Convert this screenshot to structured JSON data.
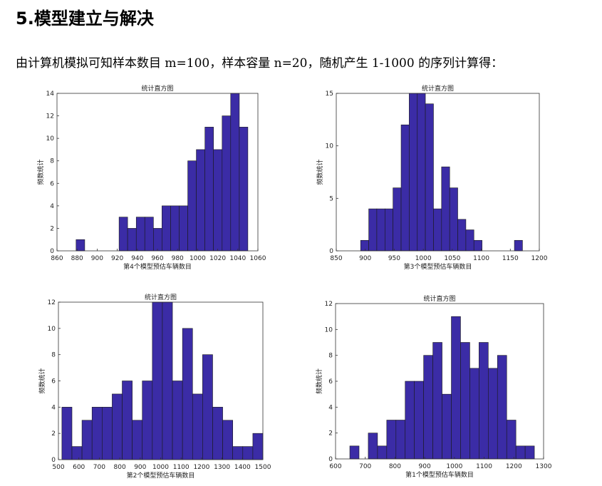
{
  "title": "5.模型建立与解决",
  "text": "由计算机模拟可知样本数目 m=100，样本容量 n=20，随机产生 1-1000 的序列计算得：",
  "chart_data": [
    {
      "type": "histogram",
      "title": "统计直方图",
      "xlabel": "第4个模型预估车辆数目",
      "ylabel": "频数统计",
      "color": "#3b2ca6",
      "bins": [
        879,
        887.6,
        896.1,
        904.7,
        913.2,
        921.8,
        930.3,
        938.9,
        947.4,
        956,
        964.5,
        973.1,
        981.6,
        990.2,
        998.7,
        1007.3,
        1015.8,
        1024.4,
        1032.9,
        1041.5,
        1050
      ],
      "values": [
        1,
        0,
        0,
        0,
        0,
        3,
        2,
        3,
        3,
        2,
        4,
        4,
        4,
        8,
        9,
        11,
        9,
        12,
        14,
        11
      ],
      "xlim": [
        860,
        1060
      ],
      "xticks": [
        860,
        880,
        900,
        920,
        940,
        960,
        980,
        1000,
        1020,
        1040,
        1060
      ],
      "ylim": [
        0,
        14
      ],
      "yticks": [
        0,
        2,
        4,
        6,
        8,
        10,
        12,
        14
      ]
    },
    {
      "type": "histogram",
      "title": "统计直方图",
      "xlabel": "第3个模型预估车辆数目",
      "ylabel": "频数统计",
      "color": "#3b2ca6",
      "bins": [
        892,
        906,
        919.9,
        933.9,
        947.8,
        961.8,
        975.7,
        989.7,
        1003.6,
        1017.6,
        1031.5,
        1045.5,
        1059.4,
        1073.4,
        1087.3,
        1101.3,
        1115.2,
        1129.2,
        1143.1,
        1157.1,
        1171
      ],
      "values": [
        1,
        4,
        4,
        4,
        6,
        12,
        15,
        15,
        14,
        4,
        8,
        6,
        3,
        2,
        1,
        0,
        0,
        0,
        0,
        1
      ],
      "xlim": [
        850,
        1200
      ],
      "xticks": [
        850,
        900,
        950,
        1000,
        1050,
        1100,
        1150,
        1200
      ],
      "ylim": [
        0,
        15
      ],
      "yticks": [
        0,
        5,
        10,
        15
      ]
    },
    {
      "type": "histogram",
      "title": "统计直方图",
      "xlabel": "第2个模型预估车辆数目",
      "ylabel": "频数统计",
      "color": "#3b2ca6",
      "bins": [
        517,
        566.2,
        615.3,
        664.5,
        713.6,
        762.8,
        811.9,
        861.1,
        910.2,
        959.4,
        1008.5,
        1057.7,
        1106.8,
        1156,
        1205.1,
        1254.3,
        1303.4,
        1352.6,
        1401.7,
        1450.9,
        1500
      ],
      "values": [
        4,
        1,
        3,
        4,
        4,
        5,
        6,
        3,
        6,
        12,
        12,
        6,
        10,
        5,
        8,
        4,
        3,
        1,
        1,
        2
      ],
      "xlim": [
        500,
        1500
      ],
      "xticks": [
        500,
        600,
        700,
        800,
        900,
        1000,
        1100,
        1200,
        1300,
        1400,
        1500
      ],
      "ylim": [
        0,
        12
      ],
      "yticks": [
        0,
        2,
        4,
        6,
        8,
        10,
        12
      ]
    },
    {
      "type": "histogram",
      "title": "统计直方图",
      "xlabel": "第1个模型预估车辆数目",
      "ylabel": "频数统计",
      "color": "#3b2ca6",
      "bins": [
        648,
        679.1,
        710.1,
        741.2,
        772.2,
        803.3,
        834.3,
        865.4,
        896.4,
        927.5,
        958.5,
        989.6,
        1020.6,
        1051.7,
        1082.7,
        1113.8,
        1144.8,
        1175.9,
        1206.9,
        1238,
        1269
      ],
      "values": [
        1,
        0,
        2,
        1,
        3,
        3,
        6,
        6,
        8,
        9,
        5,
        11,
        9,
        7,
        9,
        7,
        8,
        3,
        1,
        1
      ],
      "xlim": [
        600,
        1300
      ],
      "xticks": [
        600,
        700,
        800,
        900,
        1000,
        1100,
        1200,
        1300
      ],
      "ylim": [
        0,
        12
      ],
      "yticks": [
        0,
        2,
        4,
        6,
        8,
        10,
        12
      ]
    }
  ]
}
